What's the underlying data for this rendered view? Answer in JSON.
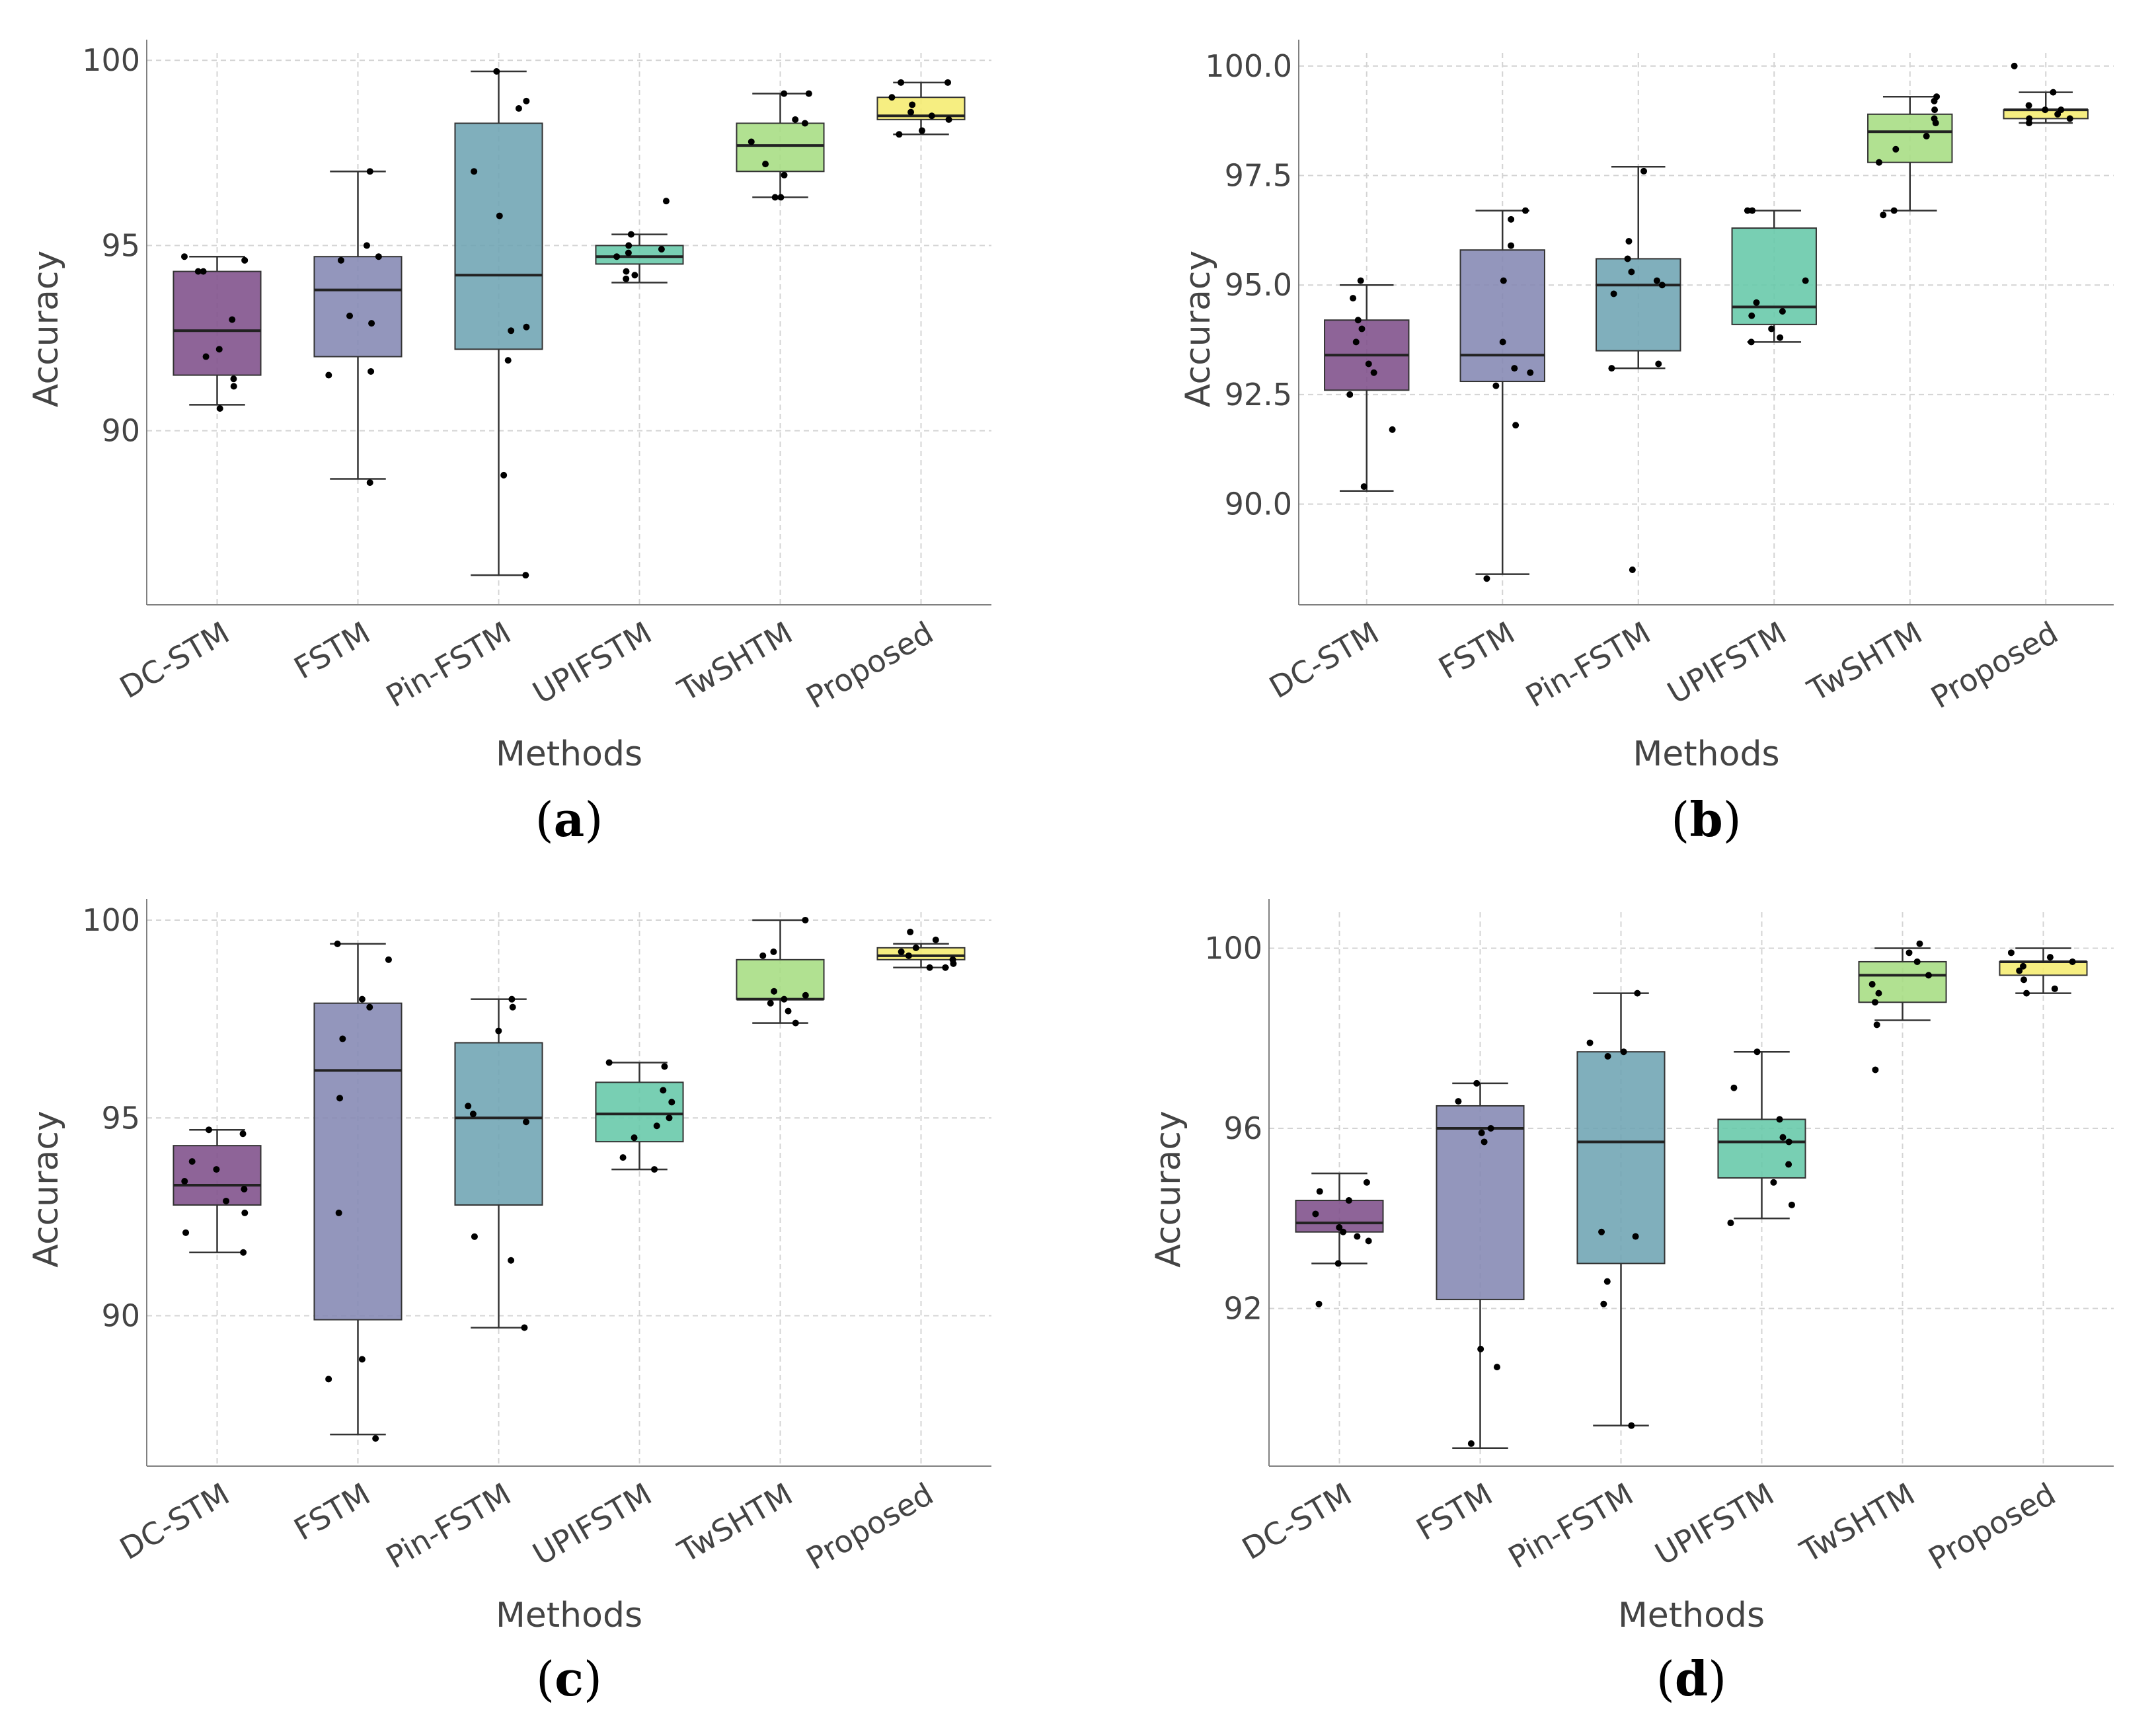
{
  "colors": {
    "DC-STM": "#7e4f8a",
    "FSTM": "#8487b3",
    "Pin-FSTM": "#6ea4b3",
    "UPIFSTM": "#65c8a8",
    "TwSHTM": "#a6dd82",
    "Proposed": "#f5ec70",
    "grid": "#d4d4d4",
    "axis": "#808080"
  },
  "chart_data": [
    {
      "type": "box",
      "label": "a",
      "xlabel": "Methods",
      "ylabel": "Accuracy",
      "ylim": [
        85.3,
        100.2
      ],
      "yticks": [
        90,
        95,
        100
      ],
      "ytick_labels": [
        "90",
        "95",
        "100"
      ],
      "categories": [
        "DC-STM",
        "FSTM",
        "Pin-FSTM",
        "UPIFSTM",
        "TwSHTM",
        "Proposed"
      ],
      "series": [
        {
          "name": "DC-STM",
          "q1": 91.5,
          "median": 92.7,
          "q3": 94.3,
          "whisker_low": 90.7,
          "whisker_high": 94.7,
          "points": [
            94.7,
            94.6,
            94.3,
            94.3,
            93.0,
            92.2,
            92.0,
            91.4,
            91.2,
            90.6
          ]
        },
        {
          "name": "FSTM",
          "q1": 92.0,
          "median": 93.8,
          "q3": 94.7,
          "whisker_low": 88.7,
          "whisker_high": 97.0,
          "points": [
            97.0,
            95.0,
            94.7,
            94.6,
            93.1,
            92.9,
            91.6,
            91.5,
            88.6
          ]
        },
        {
          "name": "Pin-FSTM",
          "q1": 92.2,
          "median": 94.2,
          "q3": 98.3,
          "whisker_low": 86.1,
          "whisker_high": 99.7,
          "points": [
            99.7,
            98.9,
            98.7,
            97.0,
            95.8,
            92.8,
            92.7,
            91.9,
            88.8,
            86.1
          ]
        },
        {
          "name": "UPIFSTM",
          "q1": 94.5,
          "median": 94.7,
          "q3": 95.0,
          "whisker_low": 94.0,
          "whisker_high": 95.3,
          "points": [
            96.2,
            95.3,
            95.0,
            94.9,
            94.8,
            94.7,
            94.3,
            94.2,
            94.1
          ]
        },
        {
          "name": "TwSHTM",
          "q1": 97.0,
          "median": 97.7,
          "q3": 98.3,
          "whisker_low": 96.3,
          "whisker_high": 99.1,
          "points": [
            99.1,
            99.1,
            98.4,
            98.3,
            97.8,
            97.2,
            96.9,
            96.3,
            96.3
          ]
        },
        {
          "name": "Proposed",
          "q1": 98.4,
          "median": 98.5,
          "q3": 99.0,
          "whisker_low": 98.0,
          "whisker_high": 99.4,
          "points": [
            99.4,
            99.4,
            99.0,
            98.8,
            98.6,
            98.5,
            98.4,
            98.1,
            98.0
          ]
        }
      ]
    },
    {
      "type": "box",
      "label": "b",
      "xlabel": "Methods",
      "ylabel": "Accuracy",
      "ylim": [
        87.7,
        100.3
      ],
      "yticks": [
        90.0,
        92.5,
        95.0,
        97.5,
        100.0
      ],
      "ytick_labels": [
        "90.0",
        "92.5",
        "95.0",
        "97.5",
        "100.0"
      ],
      "categories": [
        "DC-STM",
        "FSTM",
        "Pin-FSTM",
        "UPIFSTM",
        "TwSHTM",
        "Proposed"
      ],
      "series": [
        {
          "name": "DC-STM",
          "q1": 92.6,
          "median": 93.4,
          "q3": 94.2,
          "whisker_low": 90.3,
          "whisker_high": 95.0,
          "points": [
            95.1,
            94.7,
            94.2,
            94.0,
            93.7,
            93.2,
            93.0,
            92.5,
            91.7,
            90.4
          ]
        },
        {
          "name": "FSTM",
          "q1": 92.8,
          "median": 93.4,
          "q3": 95.8,
          "whisker_low": 88.4,
          "whisker_high": 96.7,
          "points": [
            96.7,
            96.5,
            95.9,
            95.1,
            93.7,
            93.1,
            93.0,
            92.7,
            91.8,
            88.3
          ]
        },
        {
          "name": "Pin-FSTM",
          "q1": 93.5,
          "median": 95.0,
          "q3": 95.6,
          "whisker_low": 93.1,
          "whisker_high": 97.7,
          "points": [
            97.6,
            96.0,
            95.6,
            95.3,
            95.1,
            95.0,
            94.8,
            93.2,
            93.1,
            88.5
          ]
        },
        {
          "name": "UPIFSTM",
          "q1": 94.1,
          "median": 94.5,
          "q3": 96.3,
          "whisker_low": 93.7,
          "whisker_high": 96.7,
          "points": [
            96.7,
            96.7,
            95.1,
            94.6,
            94.4,
            94.3,
            94.0,
            93.8,
            93.7
          ]
        },
        {
          "name": "TwSHTM",
          "q1": 97.8,
          "median": 98.5,
          "q3": 98.9,
          "whisker_low": 96.7,
          "whisker_high": 99.3,
          "points": [
            99.3,
            99.2,
            99.0,
            98.8,
            98.7,
            98.4,
            98.1,
            97.8,
            96.7,
            96.6
          ]
        },
        {
          "name": "Proposed",
          "q1": 98.8,
          "median": 99.0,
          "q3": 99.0,
          "whisker_low": 98.7,
          "whisker_high": 99.4,
          "points": [
            100.0,
            99.4,
            99.1,
            99.0,
            99.0,
            98.9,
            98.8,
            98.8,
            98.7
          ]
        }
      ]
    },
    {
      "type": "box",
      "label": "c",
      "xlabel": "Methods",
      "ylabel": "Accuracy",
      "ylim": [
        86.2,
        100.2
      ],
      "yticks": [
        90,
        95,
        100
      ],
      "ytick_labels": [
        "90",
        "95",
        "100"
      ],
      "categories": [
        "DC-STM",
        "FSTM",
        "Pin-FSTM",
        "UPIFSTM",
        "TwSHTM",
        "Proposed"
      ],
      "series": [
        {
          "name": "DC-STM",
          "q1": 92.8,
          "median": 93.3,
          "q3": 94.3,
          "whisker_low": 91.6,
          "whisker_high": 94.7,
          "points": [
            94.7,
            94.6,
            93.9,
            93.7,
            93.4,
            93.2,
            92.9,
            92.6,
            92.1,
            91.6
          ]
        },
        {
          "name": "FSTM",
          "q1": 89.9,
          "median": 96.2,
          "q3": 97.9,
          "whisker_low": 87.0,
          "whisker_high": 99.4,
          "points": [
            99.4,
            99.0,
            98.0,
            97.8,
            97.0,
            95.5,
            92.6,
            88.9,
            88.4,
            86.9
          ]
        },
        {
          "name": "Pin-FSTM",
          "q1": 92.8,
          "median": 95.0,
          "q3": 96.9,
          "whisker_low": 89.7,
          "whisker_high": 98.0,
          "points": [
            98.0,
            97.8,
            97.2,
            95.3,
            95.1,
            94.9,
            92.0,
            91.4,
            89.7
          ]
        },
        {
          "name": "UPIFSTM",
          "q1": 94.4,
          "median": 95.1,
          "q3": 95.9,
          "whisker_low": 93.7,
          "whisker_high": 96.4,
          "points": [
            96.4,
            96.3,
            95.7,
            95.4,
            95.0,
            94.8,
            94.5,
            94.0,
            93.7
          ]
        },
        {
          "name": "TwSHTM",
          "q1": 98.0,
          "median": 98.0,
          "q3": 99.0,
          "whisker_low": 97.4,
          "whisker_high": 100.0,
          "points": [
            100.0,
            99.2,
            99.1,
            98.2,
            98.1,
            98.0,
            97.9,
            97.7,
            97.4
          ]
        },
        {
          "name": "Proposed",
          "q1": 99.0,
          "median": 99.1,
          "q3": 99.3,
          "whisker_low": 98.8,
          "whisker_high": 99.4,
          "points": [
            99.7,
            99.5,
            99.3,
            99.2,
            99.1,
            99.0,
            98.9,
            98.8,
            98.8
          ]
        }
      ]
    },
    {
      "type": "box",
      "label": "d",
      "xlabel": "Methods",
      "ylabel": "Accuracy",
      "ylim": [
        88.5,
        100.8
      ],
      "yticks": [
        92,
        96,
        100
      ],
      "ytick_labels": [
        "92",
        "96",
        "100"
      ],
      "categories": [
        "DC-STM",
        "FSTM",
        "Pin-FSTM",
        "UPIFSTM",
        "TwSHTM",
        "Proposed"
      ],
      "series": [
        {
          "name": "DC-STM",
          "q1": 93.7,
          "median": 93.9,
          "q3": 94.4,
          "whisker_low": 93.0,
          "whisker_high": 95.0,
          "points": [
            94.8,
            94.6,
            94.4,
            94.1,
            93.8,
            93.7,
            93.6,
            93.5,
            93.0,
            92.1
          ]
        },
        {
          "name": "FSTM",
          "q1": 92.2,
          "median": 96.0,
          "q3": 96.5,
          "whisker_low": 88.9,
          "whisker_high": 97.0,
          "points": [
            97.0,
            96.6,
            96.0,
            95.9,
            95.7,
            91.1,
            90.7,
            89.0
          ]
        },
        {
          "name": "Pin-FSTM",
          "q1": 93.0,
          "median": 95.7,
          "q3": 97.7,
          "whisker_low": 89.4,
          "whisker_high": 99.0,
          "points": [
            99.0,
            97.9,
            97.6,
            97.7,
            93.7,
            93.6,
            92.6,
            92.1,
            89.4
          ]
        },
        {
          "name": "UPIFSTM",
          "q1": 94.9,
          "median": 95.7,
          "q3": 96.2,
          "whisker_low": 94.0,
          "whisker_high": 97.7,
          "points": [
            97.7,
            96.9,
            96.2,
            95.8,
            95.7,
            95.2,
            94.8,
            94.3,
            93.9
          ]
        },
        {
          "name": "TwSHTM",
          "q1": 98.8,
          "median": 99.4,
          "q3": 99.7,
          "whisker_low": 98.4,
          "whisker_high": 100.0,
          "points": [
            100.1,
            99.9,
            99.7,
            99.4,
            99.2,
            99.0,
            98.8,
            98.3,
            97.3
          ]
        },
        {
          "name": "Proposed",
          "q1": 99.4,
          "median": 99.7,
          "q3": 99.7,
          "whisker_low": 99.0,
          "whisker_high": 100.0,
          "points": [
            99.9,
            99.8,
            99.7,
            99.6,
            99.5,
            99.3,
            99.1,
            99.0
          ]
        }
      ]
    }
  ]
}
